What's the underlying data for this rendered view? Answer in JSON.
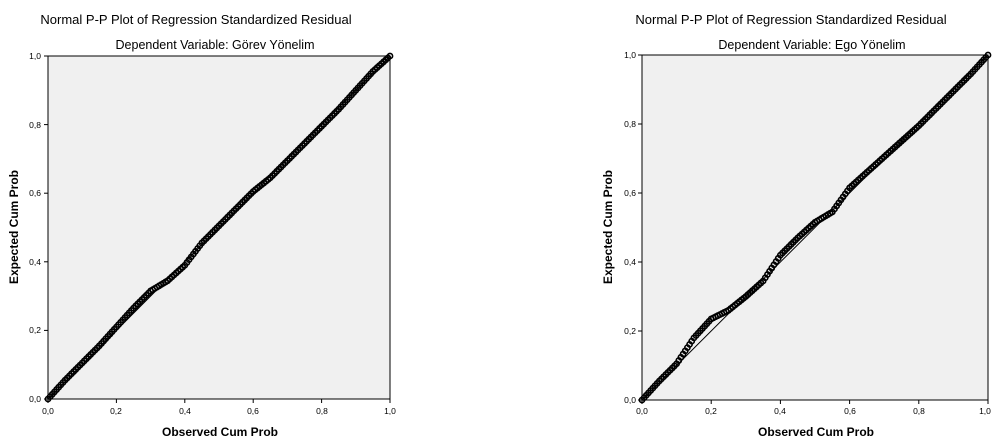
{
  "chart_data": [
    {
      "type": "scatter",
      "title": "Normal P-P Plot of Regression Standardized Residual",
      "subtitle": "Dependent Variable: Görev Yönelim",
      "xlabel": "Observed Cum Prob",
      "ylabel": "Expected Cum Prob",
      "xlim": [
        0,
        1
      ],
      "ylim": [
        0,
        1
      ],
      "x_ticks": [
        "0,0",
        "0,2",
        "0,4",
        "0,6",
        "0,8",
        "1,0"
      ],
      "y_ticks": [
        "0,0",
        "0,2",
        "0,4",
        "0,6",
        "0,8",
        "1,0"
      ],
      "plot_background": "#f0f0f0",
      "marker_color": "#000000",
      "reference_line": {
        "from": [
          0,
          0
        ],
        "to": [
          1,
          1
        ]
      },
      "observed_vs_expected": [
        [
          0.0,
          0.0
        ],
        [
          0.05,
          0.055
        ],
        [
          0.1,
          0.105
        ],
        [
          0.15,
          0.155
        ],
        [
          0.2,
          0.21
        ],
        [
          0.25,
          0.265
        ],
        [
          0.3,
          0.315
        ],
        [
          0.35,
          0.345
        ],
        [
          0.4,
          0.39
        ],
        [
          0.45,
          0.455
        ],
        [
          0.5,
          0.505
        ],
        [
          0.55,
          0.555
        ],
        [
          0.6,
          0.605
        ],
        [
          0.65,
          0.645
        ],
        [
          0.7,
          0.695
        ],
        [
          0.75,
          0.745
        ],
        [
          0.8,
          0.795
        ],
        [
          0.85,
          0.845
        ],
        [
          0.9,
          0.9
        ],
        [
          0.95,
          0.955
        ],
        [
          1.0,
          1.0
        ]
      ]
    },
    {
      "type": "scatter",
      "title": "Normal P-P Plot of Regression Standardized Residual",
      "subtitle": "Dependent Variable: Ego Yönelim",
      "xlabel": "Observed Cum Prob",
      "ylabel": "Expected Cum Prob",
      "xlim": [
        0,
        1
      ],
      "ylim": [
        0,
        1
      ],
      "x_ticks": [
        "0,0",
        "0,2",
        "0,4",
        "0,6",
        "0,8",
        "1,0"
      ],
      "y_ticks": [
        "0,0",
        "0,2",
        "0,4",
        "0,6",
        "0,8",
        "1,0"
      ],
      "plot_background": "#f0f0f0",
      "marker_color": "#000000",
      "reference_line": {
        "from": [
          0,
          0
        ],
        "to": [
          1,
          1
        ]
      },
      "observed_vs_expected": [
        [
          0.0,
          0.0
        ],
        [
          0.05,
          0.055
        ],
        [
          0.1,
          0.105
        ],
        [
          0.15,
          0.18
        ],
        [
          0.2,
          0.235
        ],
        [
          0.25,
          0.26
        ],
        [
          0.3,
          0.3
        ],
        [
          0.35,
          0.345
        ],
        [
          0.4,
          0.42
        ],
        [
          0.45,
          0.47
        ],
        [
          0.5,
          0.515
        ],
        [
          0.55,
          0.545
        ],
        [
          0.6,
          0.615
        ],
        [
          0.65,
          0.66
        ],
        [
          0.7,
          0.705
        ],
        [
          0.75,
          0.75
        ],
        [
          0.8,
          0.795
        ],
        [
          0.85,
          0.845
        ],
        [
          0.9,
          0.895
        ],
        [
          0.95,
          0.945
        ],
        [
          1.0,
          1.0
        ]
      ]
    }
  ]
}
